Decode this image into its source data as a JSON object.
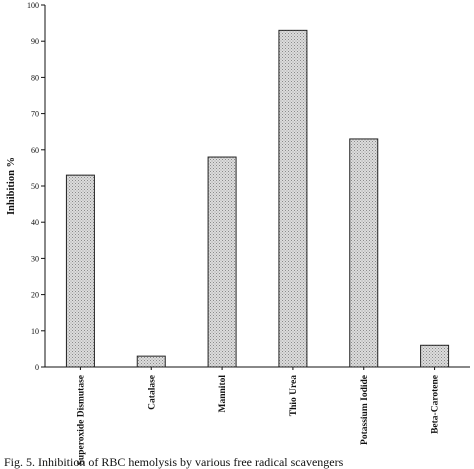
{
  "chart_data": {
    "type": "bar",
    "categories": [
      "Superoxide Dismutase",
      "Catalase",
      "Mannitol",
      "Thio Urea",
      "Potassium Iodide",
      "Beta-Carotene"
    ],
    "values": [
      53,
      3,
      58,
      93,
      63,
      6
    ],
    "title": "",
    "xlabel": "",
    "ylabel": "Inhibition %",
    "ylim": [
      0,
      100
    ],
    "yticks": [
      0,
      10,
      20,
      30,
      40,
      50,
      60,
      70,
      80,
      90,
      100
    ],
    "grid": false,
    "legend": "none",
    "bar_color": "#d8d8d8",
    "bar_edge_color": "#222222"
  },
  "caption": "Fig. 5. Inhibition of RBC hemolysis by various free radical scavengers"
}
